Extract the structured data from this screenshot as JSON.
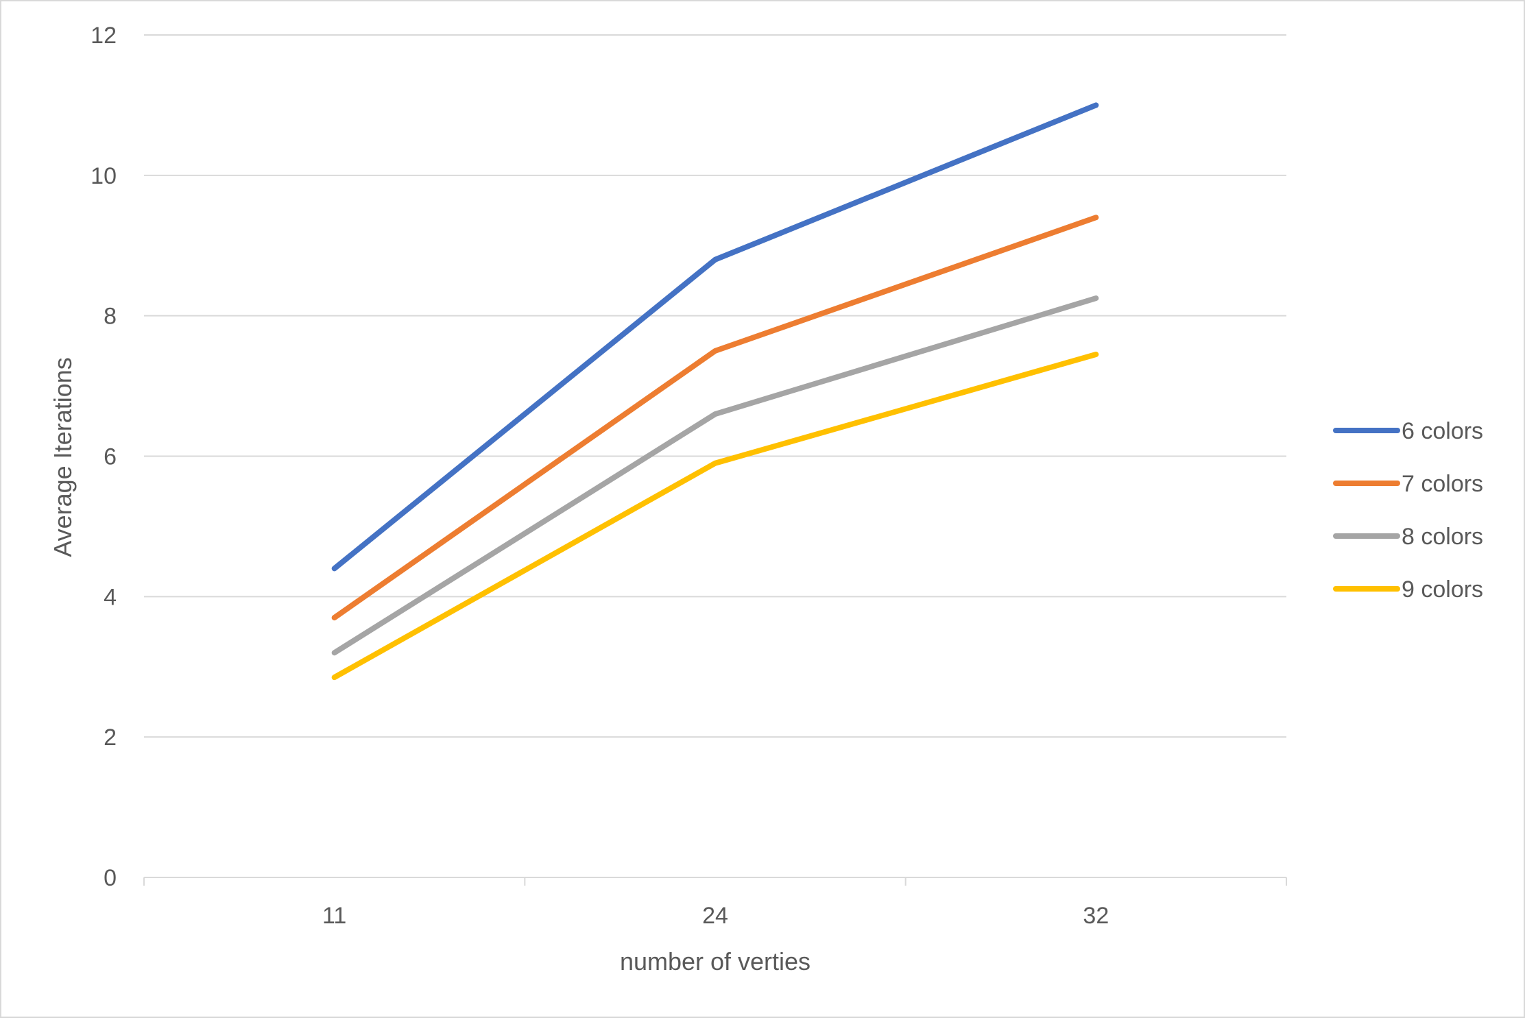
{
  "chart_data": {
    "type": "line",
    "title": "",
    "xlabel": "number of verties",
    "ylabel": "Average Iterations",
    "categories": [
      "11",
      "24",
      "32"
    ],
    "ylim": [
      0,
      12
    ],
    "yticks": [
      0,
      2,
      4,
      6,
      8,
      10,
      12
    ],
    "grid": true,
    "legend_position": "right",
    "series": [
      {
        "name": "6 colors",
        "color": "#4472C4",
        "values": [
          4.4,
          8.8,
          11.0
        ]
      },
      {
        "name": "7 colors",
        "color": "#ED7D31",
        "values": [
          3.7,
          7.5,
          9.4
        ]
      },
      {
        "name": "8 colors",
        "color": "#A5A5A5",
        "values": [
          3.2,
          6.6,
          8.25
        ]
      },
      {
        "name": "9 colors",
        "color": "#FFC000",
        "values": [
          2.85,
          5.9,
          7.45
        ]
      }
    ]
  }
}
